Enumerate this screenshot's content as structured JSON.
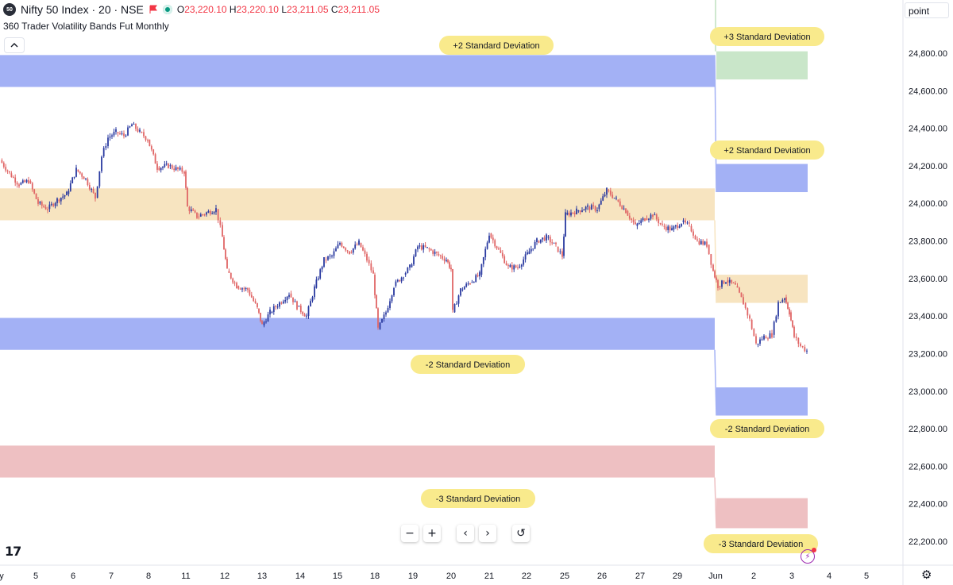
{
  "header": {
    "symbol_badge": "50",
    "symbol_title": "Nifty 50 Index · 20 · NSE",
    "ohlc": {
      "o_label": "O",
      "o": "23,220.10",
      "h_label": "H",
      "h": "23,220.10",
      "l_label": "L",
      "l": "23,211.05",
      "c_label": "C",
      "c": "23,211.05"
    },
    "indicator": "360 Trader Volatility Bands Fut Monthly"
  },
  "axis_unit": "point",
  "nav": {
    "zoom_out": "−",
    "zoom_in": "+",
    "back": "‹",
    "forward": "›",
    "reset": "↺"
  },
  "logo_text": "17",
  "colors": {
    "up": "#2a3aa0",
    "down": "#e06666",
    "band_blue": "#a3b1f5",
    "band_orange": "#f7e4c0",
    "band_red": "#eec0c2",
    "band_green": "#c9e6c9",
    "label_bg": "#f9ea8c"
  },
  "chart_data": {
    "type": "candlestick",
    "title": "Nifty 50 Index · 20 · NSE",
    "ylabel": "",
    "ylim": [
      22120,
      24960
    ],
    "y_ticks": [
      "24,800.00",
      "24,600.00",
      "24,400.00",
      "24,200.00",
      "24,000.00",
      "23,800.00",
      "23,600.00",
      "23,400.00",
      "23,200.00",
      "23,000.00",
      "22,800.00",
      "22,600.00",
      "22,400.00",
      "22,200.00"
    ],
    "x_ticks": [
      "y",
      "5",
      "6",
      "7",
      "8",
      "11",
      "12",
      "13",
      "14",
      "15",
      "18",
      "19",
      "20",
      "21",
      "22",
      "25",
      "26",
      "27",
      "29",
      "Jun",
      "2",
      "3",
      "4",
      "5"
    ],
    "ohlc": {
      "open": 23220.1,
      "high": 23220.1,
      "low": 23211.05,
      "close": 23211.05
    },
    "bands_may": [
      {
        "from": 24620,
        "to": 24790,
        "color": "blue"
      },
      {
        "from": 23910,
        "to": 24080,
        "color": "orange"
      },
      {
        "from": 23220,
        "to": 23390,
        "color": "blue"
      },
      {
        "from": 22540,
        "to": 22710,
        "color": "red"
      }
    ],
    "bands_june": [
      {
        "from": 24660,
        "to": 24810,
        "color": "green"
      },
      {
        "from": 24060,
        "to": 24210,
        "color": "blue"
      },
      {
        "from": 23470,
        "to": 23620,
        "color": "orange"
      },
      {
        "from": 22870,
        "to": 23020,
        "color": "blue"
      },
      {
        "from": 22270,
        "to": 22430,
        "color": "red"
      }
    ],
    "band_labels": [
      {
        "text": "+2 Standard Deviation",
        "period": "may"
      },
      {
        "text": "-2 Standard Deviation",
        "period": "may"
      },
      {
        "text": "-3 Standard Deviation",
        "period": "may"
      },
      {
        "text": "+3 Standard Deviation",
        "period": "june"
      },
      {
        "text": "+2 Standard Deviation",
        "period": "june"
      },
      {
        "text": "-2 Standard Deviation",
        "period": "june"
      },
      {
        "text": "-3 Standard Deviation",
        "period": "june"
      }
    ],
    "price_path": [
      [
        0,
        24230
      ],
      [
        12,
        24160
      ],
      [
        24,
        24100
      ],
      [
        36,
        24120
      ],
      [
        48,
        24000
      ],
      [
        60,
        23970
      ],
      [
        72,
        24020
      ],
      [
        84,
        24050
      ],
      [
        96,
        24180
      ],
      [
        108,
        24130
      ],
      [
        120,
        24030
      ],
      [
        128,
        24250
      ],
      [
        136,
        24350
      ],
      [
        146,
        24380
      ],
      [
        156,
        24360
      ],
      [
        166,
        24420
      ],
      [
        176,
        24380
      ],
      [
        186,
        24340
      ],
      [
        198,
        24190
      ],
      [
        212,
        24200
      ],
      [
        224,
        24180
      ],
      [
        232,
        24170
      ],
      [
        236,
        23980
      ],
      [
        248,
        23930
      ],
      [
        260,
        23950
      ],
      [
        272,
        23970
      ],
      [
        280,
        23820
      ],
      [
        286,
        23640
      ],
      [
        298,
        23560
      ],
      [
        312,
        23540
      ],
      [
        324,
        23440
      ],
      [
        330,
        23350
      ],
      [
        340,
        23420
      ],
      [
        352,
        23470
      ],
      [
        364,
        23520
      ],
      [
        374,
        23450
      ],
      [
        386,
        23400
      ],
      [
        396,
        23550
      ],
      [
        408,
        23700
      ],
      [
        418,
        23720
      ],
      [
        428,
        23790
      ],
      [
        440,
        23740
      ],
      [
        452,
        23790
      ],
      [
        462,
        23700
      ],
      [
        470,
        23620
      ],
      [
        476,
        23330
      ],
      [
        486,
        23420
      ],
      [
        496,
        23560
      ],
      [
        508,
        23620
      ],
      [
        516,
        23660
      ],
      [
        526,
        23770
      ],
      [
        538,
        23760
      ],
      [
        550,
        23730
      ],
      [
        562,
        23700
      ],
      [
        568,
        23650
      ],
      [
        570,
        23420
      ],
      [
        580,
        23540
      ],
      [
        592,
        23580
      ],
      [
        604,
        23620
      ],
      [
        616,
        23840
      ],
      [
        628,
        23750
      ],
      [
        640,
        23660
      ],
      [
        652,
        23660
      ],
      [
        664,
        23730
      ],
      [
        676,
        23800
      ],
      [
        688,
        23820
      ],
      [
        700,
        23770
      ],
      [
        708,
        23720
      ],
      [
        712,
        23940
      ],
      [
        726,
        23960
      ],
      [
        740,
        23980
      ],
      [
        752,
        23970
      ],
      [
        764,
        24070
      ],
      [
        776,
        24020
      ],
      [
        788,
        23960
      ],
      [
        800,
        23880
      ],
      [
        812,
        23920
      ],
      [
        822,
        23940
      ],
      [
        834,
        23880
      ],
      [
        846,
        23860
      ],
      [
        858,
        23900
      ],
      [
        868,
        23880
      ],
      [
        878,
        23800
      ],
      [
        890,
        23780
      ],
      [
        898,
        23640
      ],
      [
        904,
        23560
      ],
      [
        914,
        23590
      ],
      [
        926,
        23560
      ],
      [
        936,
        23470
      ],
      [
        944,
        23380
      ],
      [
        952,
        23250
      ],
      [
        962,
        23290
      ],
      [
        972,
        23300
      ],
      [
        980,
        23470
      ],
      [
        988,
        23500
      ],
      [
        994,
        23420
      ],
      [
        1000,
        23290
      ],
      [
        1008,
        23240
      ],
      [
        1016,
        23215
      ]
    ]
  }
}
